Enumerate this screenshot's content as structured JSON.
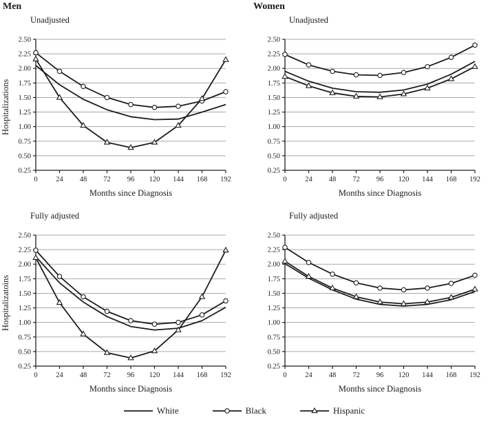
{
  "page": {
    "columns": [
      "Men",
      "Women"
    ],
    "legend": [
      {
        "label": "White",
        "marker": "none"
      },
      {
        "label": "Black",
        "marker": "circle"
      },
      {
        "label": "Hispanic",
        "marker": "triangle"
      }
    ],
    "colors": {
      "line": "#1c1c1c",
      "grid": "#a9a9a9",
      "axis": "#1c1c1c",
      "marker_fill": "#ffffff"
    }
  },
  "chart_data": [
    {
      "type": "line",
      "group": "Men",
      "subtitle": "Unadjusted",
      "ylabel": "Hospitalizations",
      "xlabel": "Months since Diagnosis",
      "x": [
        0,
        24,
        48,
        72,
        96,
        120,
        144,
        168,
        192
      ],
      "xtick_labels": [
        "0",
        "24",
        "48",
        "72",
        "96",
        "120",
        "144",
        "168",
        "192"
      ],
      "ylim": [
        0.25,
        2.5
      ],
      "ytick_labels": [
        "0.25",
        "0.50",
        "0.75",
        "1.00",
        "1.25",
        "1.50",
        "1.75",
        "2.00",
        "2.25",
        "2.50"
      ],
      "grid": true,
      "series": [
        {
          "name": "White",
          "marker": "none",
          "values": [
            2.05,
            1.72,
            1.47,
            1.29,
            1.17,
            1.12,
            1.13,
            1.25,
            1.38
          ]
        },
        {
          "name": "Black",
          "marker": "circle",
          "values": [
            2.27,
            1.95,
            1.69,
            1.5,
            1.38,
            1.33,
            1.35,
            1.44,
            1.6
          ]
        },
        {
          "name": "Hispanic",
          "marker": "triangle",
          "values": [
            2.16,
            1.5,
            1.02,
            0.73,
            0.64,
            0.73,
            1.02,
            1.48,
            2.15
          ]
        }
      ]
    },
    {
      "type": "line",
      "group": "Women",
      "subtitle": "Unadjusted",
      "ylabel": "",
      "xlabel": "Months since Diagnosis",
      "x": [
        0,
        24,
        48,
        72,
        96,
        120,
        144,
        168,
        192
      ],
      "xtick_labels": [
        "0",
        "24",
        "48",
        "72",
        "96",
        "120",
        "144",
        "168",
        "192"
      ],
      "ylim": [
        0.25,
        2.5
      ],
      "ytick_labels": [
        "0.25",
        "0.50",
        "0.75",
        "1.00",
        "1.25",
        "1.50",
        "1.75",
        "2.00",
        "2.25",
        "2.50"
      ],
      "grid": true,
      "series": [
        {
          "name": "White",
          "marker": "none",
          "values": [
            1.95,
            1.78,
            1.66,
            1.6,
            1.59,
            1.63,
            1.73,
            1.9,
            2.12
          ]
        },
        {
          "name": "Black",
          "marker": "circle",
          "values": [
            2.24,
            2.06,
            1.95,
            1.89,
            1.88,
            1.93,
            2.03,
            2.19,
            2.4
          ]
        },
        {
          "name": "Hispanic",
          "marker": "triangle",
          "values": [
            1.86,
            1.7,
            1.58,
            1.52,
            1.51,
            1.56,
            1.66,
            1.82,
            2.03
          ]
        }
      ]
    },
    {
      "type": "line",
      "group": "Men",
      "subtitle": "Fully adjusted",
      "ylabel": "Hospitalizatoins",
      "xlabel": "Months since Diagnosis",
      "x": [
        0,
        24,
        48,
        72,
        96,
        120,
        144,
        168,
        192
      ],
      "xtick_labels": [
        "0",
        "24",
        "48",
        "72",
        "96",
        "120",
        "144",
        "168",
        "192"
      ],
      "ylim": [
        0.25,
        2.5
      ],
      "ytick_labels": [
        "0.25",
        "0.50",
        "0.75",
        "1.00",
        "1.25",
        "1.50",
        "1.75",
        "2.00",
        "2.25",
        "2.50"
      ],
      "grid": true,
      "series": [
        {
          "name": "White",
          "marker": "none",
          "values": [
            2.13,
            1.68,
            1.35,
            1.1,
            0.93,
            0.87,
            0.9,
            1.03,
            1.26
          ]
        },
        {
          "name": "Black",
          "marker": "circle",
          "values": [
            2.24,
            1.79,
            1.44,
            1.19,
            1.03,
            0.97,
            1.0,
            1.13,
            1.37
          ]
        },
        {
          "name": "Hispanic",
          "marker": "triangle",
          "values": [
            2.11,
            1.34,
            0.8,
            0.48,
            0.39,
            0.51,
            0.87,
            1.44,
            2.24
          ]
        }
      ]
    },
    {
      "type": "line",
      "group": "Women",
      "subtitle": "Fully adjusted",
      "ylabel": "",
      "xlabel": "Months since Diagnosis",
      "x": [
        0,
        24,
        48,
        72,
        96,
        120,
        144,
        168,
        192
      ],
      "xtick_labels": [
        "0",
        "24",
        "48",
        "72",
        "96",
        "120",
        "144",
        "168",
        "192"
      ],
      "ylim": [
        0.25,
        2.5
      ],
      "ytick_labels": [
        "0.25",
        "0.50",
        "0.75",
        "1.00",
        "1.25",
        "1.50",
        "1.75",
        "2.00",
        "2.25",
        "2.50"
      ],
      "grid": true,
      "series": [
        {
          "name": "White",
          "marker": "none",
          "values": [
            2.01,
            1.76,
            1.56,
            1.4,
            1.31,
            1.28,
            1.31,
            1.39,
            1.53
          ]
        },
        {
          "name": "Black",
          "marker": "circle",
          "values": [
            2.29,
            2.03,
            1.83,
            1.68,
            1.59,
            1.56,
            1.59,
            1.67,
            1.81
          ]
        },
        {
          "name": "Hispanic",
          "marker": "triangle",
          "values": [
            2.05,
            1.79,
            1.59,
            1.44,
            1.35,
            1.32,
            1.35,
            1.43,
            1.57
          ]
        }
      ]
    }
  ]
}
